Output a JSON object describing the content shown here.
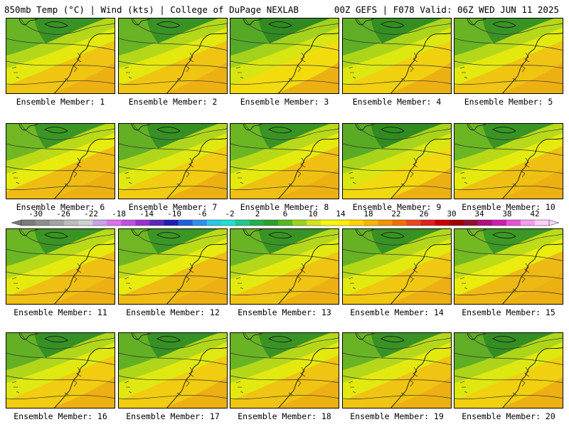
{
  "header": {
    "left": "850mb Temp (°C) | Wind (kts) | College of DuPage NEXLAB",
    "right": "00Z GEFS | F078 Valid: 06Z WED JUN 11 2025"
  },
  "panels": [
    {
      "label": "Ensemble Member: 1",
      "warmth": 0.55
    },
    {
      "label": "Ensemble Member: 2",
      "warmth": 0.55
    },
    {
      "label": "Ensemble Member: 3",
      "warmth": 0.25
    },
    {
      "label": "Ensemble Member: 4",
      "warmth": 0.4
    },
    {
      "label": "Ensemble Member: 5",
      "warmth": 0.55
    },
    {
      "label": "Ensemble Member: 6",
      "warmth": 0.65
    },
    {
      "label": "Ensemble Member: 7",
      "warmth": 0.45
    },
    {
      "label": "Ensemble Member: 8",
      "warmth": 0.6
    },
    {
      "label": "Ensemble Member: 9",
      "warmth": 0.3
    },
    {
      "label": "Ensemble Member: 10",
      "warmth": 0.6
    },
    {
      "label": "Ensemble Member: 11",
      "warmth": 0.6
    },
    {
      "label": "Ensemble Member: 12",
      "warmth": 0.65
    },
    {
      "label": "Ensemble Member: 13",
      "warmth": 0.55
    },
    {
      "label": "Ensemble Member: 14",
      "warmth": 0.5
    },
    {
      "label": "Ensemble Member: 15",
      "warmth": 0.7
    },
    {
      "label": "Ensemble Member: 16",
      "warmth": 0.45
    },
    {
      "label": "Ensemble Member: 17",
      "warmth": 0.45
    },
    {
      "label": "Ensemble Member: 18",
      "warmth": 0.55
    },
    {
      "label": "Ensemble Member: 19",
      "warmth": 0.55
    },
    {
      "label": "Ensemble Member: 20",
      "warmth": 0.4
    }
  ],
  "colorbar": {
    "labels": [
      "-30",
      "-26",
      "-22",
      "-18",
      "-14",
      "-10",
      "-6",
      "-2",
      "2",
      "6",
      "10",
      "14",
      "18",
      "22",
      "26",
      "30",
      "34",
      "38",
      "42"
    ],
    "colors": [
      "#7a7a7a",
      "#8e8e8e",
      "#a4a4a4",
      "#bdbdbd",
      "#d0d0d0",
      "#c8a2e8",
      "#e070f0",
      "#c050e0",
      "#9b30d0",
      "#5a2ab8",
      "#1e1eb4",
      "#1f5fd8",
      "#2f8ff0",
      "#28c8e8",
      "#20e0d0",
      "#20c890",
      "#1fb050",
      "#2aa02a",
      "#55b81e",
      "#9ad21e",
      "#d2e61a",
      "#f6f60a",
      "#fff000",
      "#ffd200",
      "#f8b400",
      "#f09600",
      "#f07000",
      "#e84820",
      "#e02020",
      "#c80000",
      "#a00000",
      "#8c1430",
      "#b0107c",
      "#d01cb0",
      "#e850d8",
      "#f49cf0",
      "#fcd0fc"
    ]
  }
}
